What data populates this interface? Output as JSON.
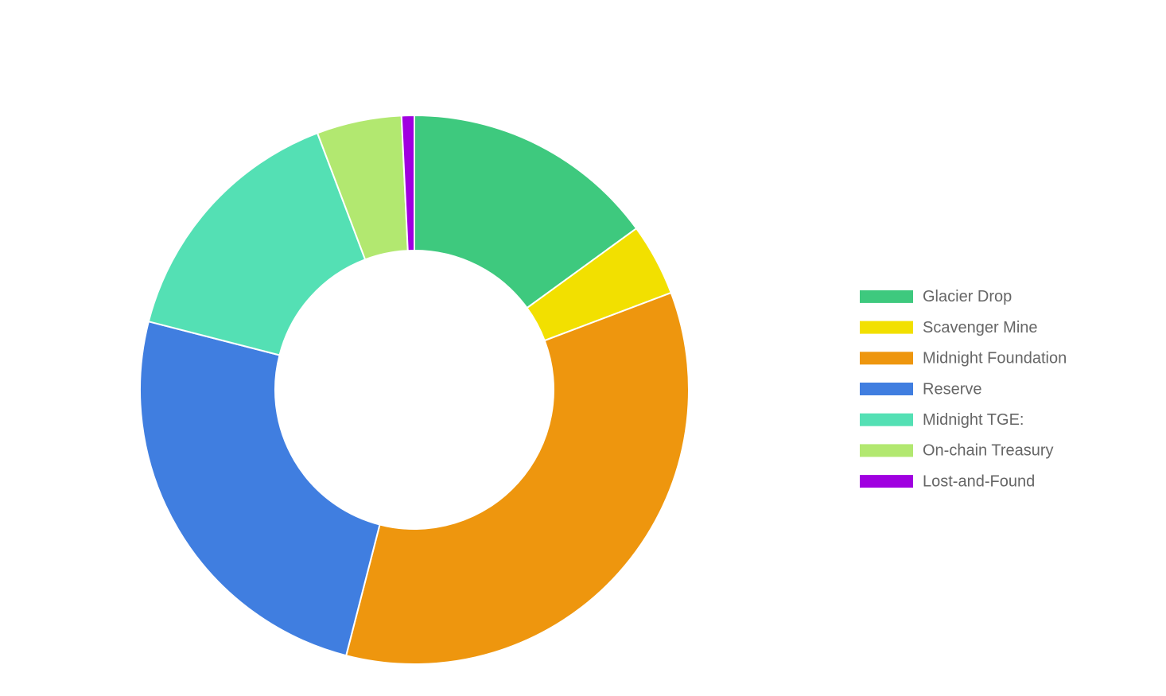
{
  "chart_data": {
    "type": "donut",
    "categories": [
      "Glacier Drop",
      "Scavenger Mine",
      "Midnight Foundation",
      "Reserve",
      "Midnight TGE:",
      "On-chain Treasury",
      "Lost-and-Found"
    ],
    "values": [
      15,
      4.25,
      34.75,
      25,
      15.25,
      5,
      0.75
    ],
    "colors": [
      "#3ec97e",
      "#f2e000",
      "#ee960e",
      "#407ee0",
      "#54e0b4",
      "#b2e870",
      "#a000e0"
    ],
    "legend": "right"
  }
}
